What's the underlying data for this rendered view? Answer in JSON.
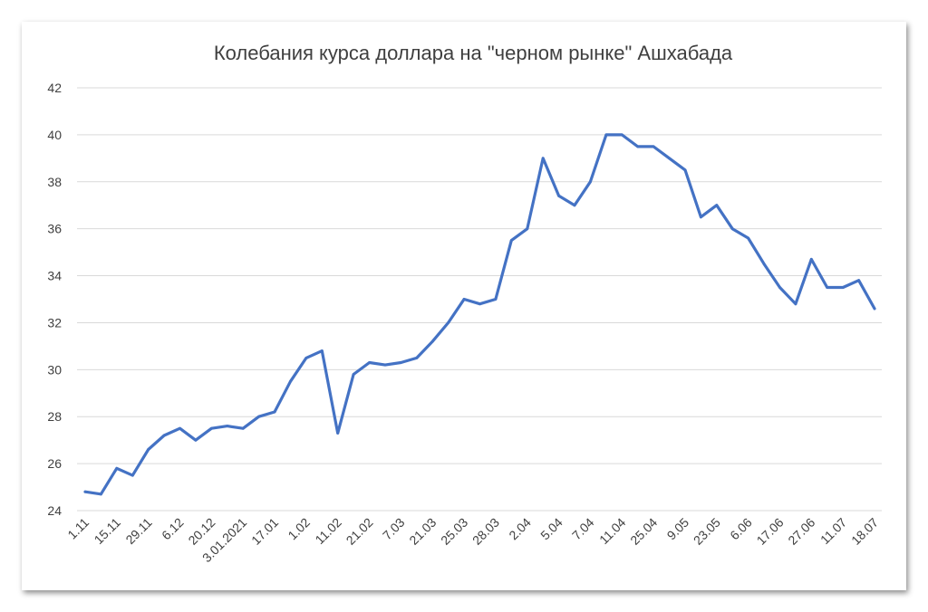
{
  "chart_data": {
    "type": "line",
    "title": "Колебания курса доллара на \"черном рынке\" Ашхабада",
    "xlabel": "",
    "ylabel": "",
    "ylim": [
      24,
      42
    ],
    "yticks": [
      24,
      26,
      28,
      30,
      32,
      34,
      36,
      38,
      40,
      42
    ],
    "xtick_labels": [
      "1.11",
      "15.11",
      "29.11",
      "6.12",
      "20.12",
      "3.01.2021",
      "17.01",
      "1.02",
      "11.02",
      "21.02",
      "7.03",
      "21.03",
      "25.03",
      "28.03",
      "2.04",
      "5.04",
      "7.04",
      "11.04",
      "25.04",
      "9.05",
      "23.05",
      "6.06",
      "17.06",
      "27.06",
      "11.07",
      "18.07"
    ],
    "grid": true,
    "legend": "none",
    "line_color": "#4472c4",
    "series": [
      {
        "values": [
          24.8,
          24.7,
          25.8,
          25.5,
          26.6,
          27.2,
          27.5,
          27.0,
          27.5,
          27.6,
          27.5,
          28.0,
          28.2,
          29.5,
          30.5,
          30.8,
          27.3,
          29.8,
          30.3,
          30.2,
          30.3,
          30.5,
          31.2,
          32.0,
          33.0,
          32.8,
          33.0,
          35.5,
          36.0,
          39.0,
          37.4,
          37.0,
          38.0,
          40.0,
          40.0,
          39.5,
          39.5,
          39.0,
          38.5,
          36.5,
          37.0,
          36.0,
          35.6,
          34.5,
          33.5,
          32.8,
          34.7,
          33.5,
          33.5,
          33.8,
          32.6
        ]
      }
    ]
  }
}
